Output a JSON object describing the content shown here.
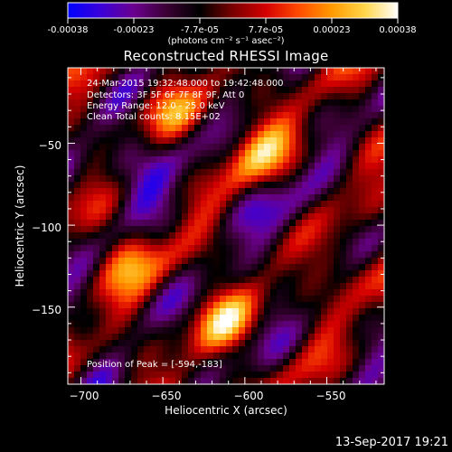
{
  "colorbar": {
    "ticks": [
      "-0.00038",
      "-0.00023",
      "-7.7e-05",
      "7.7e-05",
      "0.00023",
      "0.00038"
    ],
    "unit_label": "(photons cm⁻² s⁻¹ asec⁻²)",
    "colors": [
      "#0000ff",
      "#3b00d9",
      "#6b008f",
      "#3a0033",
      "#000000",
      "#7a0000",
      "#d40000",
      "#ff4b00",
      "#ff9a00",
      "#ffd64a",
      "#ffffff"
    ]
  },
  "plot": {
    "title": "Reconstructed RHESSI Image",
    "xlabel": "Heliocentric X (arcsec)",
    "ylabel": "Heliocentric Y (arcsec)",
    "xticks": [
      "−700",
      "−650",
      "−600",
      "−550"
    ],
    "yticks": [
      "−50",
      "−100",
      "−150"
    ],
    "overlay": {
      "time_range": "24-Mar-2015 19:32:48.000 to 19:42:48.000",
      "detectors": "Detectors: 3F 5F 6F 7F 8F 9F, Att 0",
      "energy": "Energy Range: 12.0 - 25.0 keV",
      "clean": "Clean     Total counts: 8.15E+02",
      "peak": "Position of Peak = [-594,-183]"
    }
  },
  "footer": {
    "date": "13-Sep-2017 19:21"
  },
  "chart_data": {
    "type": "heatmap",
    "title": "Reconstructed RHESSI Image",
    "xlabel": "Heliocentric X (arcsec)",
    "ylabel": "Heliocentric Y (arcsec)",
    "xlim": [
      -708,
      -515
    ],
    "ylim": [
      -197,
      -4
    ],
    "colorbar_range": [
      -0.00038,
      0.00038
    ],
    "colorbar_ticks": [
      -0.00038,
      -0.00023,
      -7.7e-05,
      7.7e-05,
      0.00023,
      0.00038
    ],
    "peak_position": [
      -594,
      -183
    ],
    "grid": false
  }
}
